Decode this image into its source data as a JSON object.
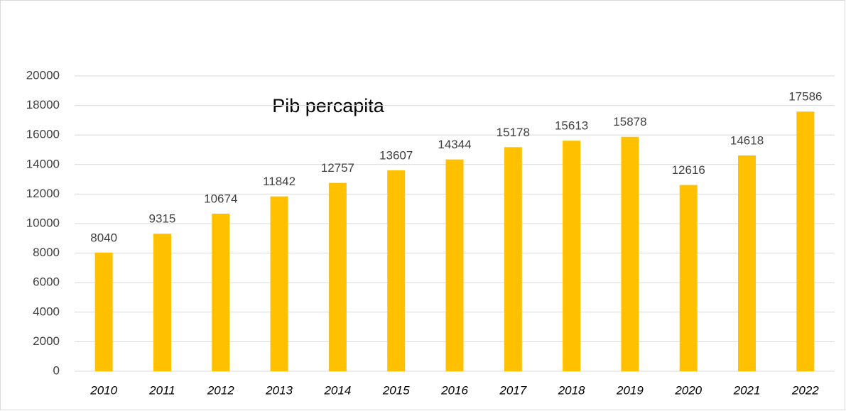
{
  "chart_data": {
    "type": "bar",
    "title": "Pib percapita",
    "categories": [
      "2010",
      "2011",
      "2012",
      "2013",
      "2014",
      "2015",
      "2016",
      "2017",
      "2018",
      "2019",
      "2020",
      "2021",
      "2022"
    ],
    "values": [
      8040,
      9315,
      10674,
      11842,
      12757,
      13607,
      14344,
      15178,
      15613,
      15878,
      12616,
      14618,
      17586
    ],
    "color": "#ffc000",
    "ylim": [
      0,
      20000
    ],
    "yticks": [
      0,
      2000,
      4000,
      6000,
      8000,
      10000,
      12000,
      14000,
      16000,
      18000,
      20000
    ],
    "grid": true
  }
}
